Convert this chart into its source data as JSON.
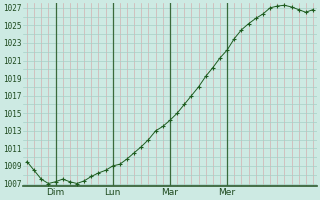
{
  "y_values": [
    1009.5,
    1008.5,
    1007.5,
    1007.0,
    1007.2,
    1007.5,
    1007.2,
    1007.0,
    1007.3,
    1007.8,
    1008.2,
    1008.5,
    1009.0,
    1009.2,
    1009.8,
    1010.5,
    1011.2,
    1012.0,
    1013.0,
    1013.5,
    1014.2,
    1015.0,
    1016.0,
    1017.0,
    1018.0,
    1019.2,
    1020.2,
    1021.3,
    1022.2,
    1023.5,
    1024.5,
    1025.2,
    1025.8,
    1026.3,
    1027.0,
    1027.2,
    1027.3,
    1027.1,
    1026.8,
    1026.5,
    1026.8
  ],
  "x_tick_positions": [
    4,
    12,
    20,
    28
  ],
  "x_tick_labels": [
    "Dim",
    "Lun",
    "Mar",
    "Mer"
  ],
  "y_min": 1007,
  "y_max": 1027,
  "y_tick_step": 2,
  "n_points": 41,
  "line_color": "#1e5c1e",
  "marker_color": "#1e5c1e",
  "bg_color": "#cdeae3",
  "grid_h_color": "#a8cfc7",
  "grid_v_color": "#d4b0b0",
  "axis_color": "#1e4a1e",
  "bottom_spine_color": "#2d5a2d",
  "vline_color": "#3a6a3a",
  "label_color": "#1e4a1e",
  "tick_label_fontsize": 5.5,
  "x_label_fontsize": 6.5
}
